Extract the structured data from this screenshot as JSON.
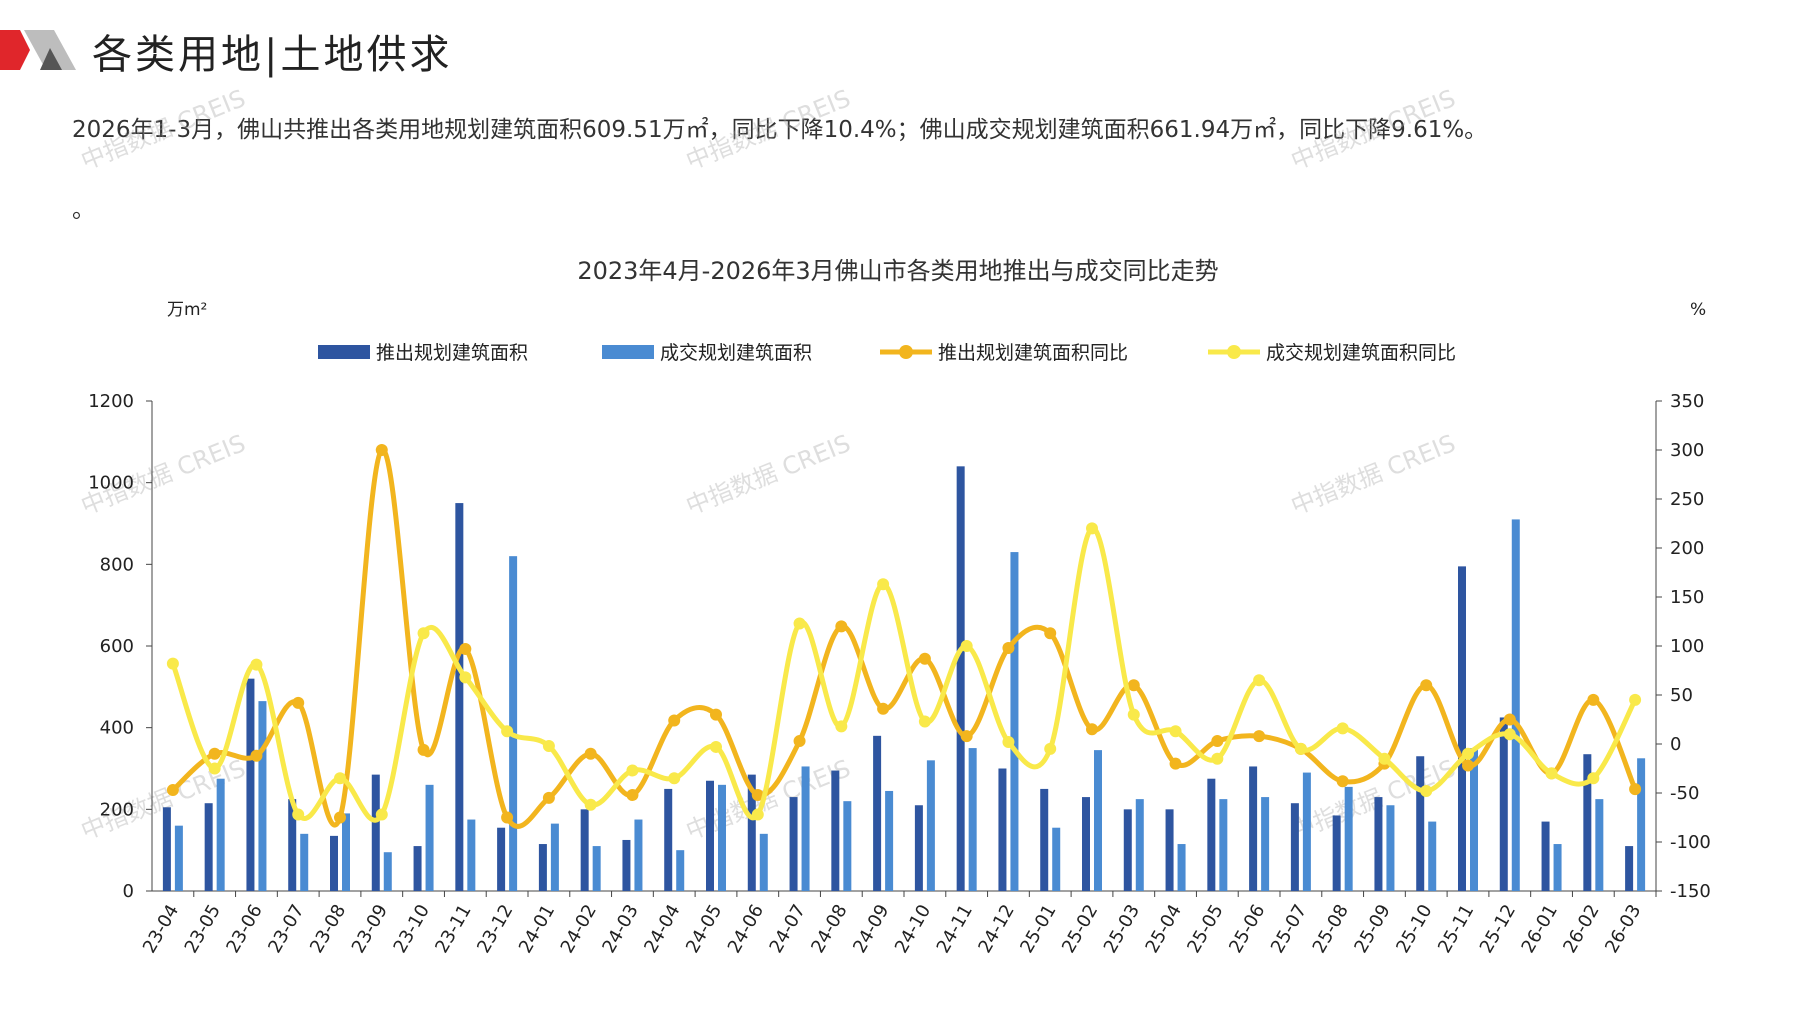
{
  "page": {
    "title": "各类用地|土地供求",
    "summary": "2026年1-3月，佛山共推出各类用地规划建筑面积609.51万㎡，同比下降10.4%；佛山成交规划建筑面积661.94万㎡，同比下降9.61%。",
    "summary_tail": "。",
    "watermark": "中指数据 CREIS"
  },
  "colors": {
    "supply_bar": "#2E55A0",
    "deal_bar": "#4A8BD2",
    "supply_line": "#F2B51E",
    "deal_line": "#F9E94A",
    "logo_red": "#E0262B",
    "logo_gray": "#9C9C9C"
  },
  "chart_data": {
    "type": "bar",
    "title": "2023年4月-2026年3月佛山市各类用地推出与成交同比走势",
    "y_left_unit": "万m²",
    "y_right_unit": "%",
    "y_left_lim": [
      0,
      1200
    ],
    "y_left_ticks": [
      "0",
      "200",
      "400",
      "600",
      "800",
      "1000",
      "1200"
    ],
    "y_right_lim": [
      -150,
      350
    ],
    "y_right_ticks": [
      "-150",
      "-100",
      "-50",
      "0",
      "50",
      "100",
      "150",
      "200",
      "250",
      "300",
      "350"
    ],
    "legend_position": "top",
    "categories": [
      "23-04",
      "23-05",
      "23-06",
      "23-07",
      "23-08",
      "23-09",
      "23-10",
      "23-11",
      "23-12",
      "24-01",
      "24-02",
      "24-03",
      "24-04",
      "24-05",
      "24-06",
      "24-07",
      "24-08",
      "24-09",
      "24-10",
      "24-11",
      "24-12",
      "25-01",
      "25-02",
      "25-03",
      "25-04",
      "25-05",
      "25-06",
      "25-07",
      "25-08",
      "25-09",
      "25-10",
      "25-11",
      "25-12",
      "26-01",
      "26-02",
      "26-03"
    ],
    "series": [
      {
        "name": "推出规划建筑面积",
        "type": "bar",
        "axis": "left",
        "values": [
          205,
          215,
          520,
          225,
          135,
          285,
          110,
          950,
          155,
          115,
          200,
          125,
          250,
          270,
          285,
          230,
          295,
          380,
          210,
          1040,
          300,
          250,
          230,
          200,
          200,
          275,
          305,
          215,
          185,
          230,
          330,
          795,
          425,
          170,
          335,
          110
        ]
      },
      {
        "name": "成交规划建筑面积",
        "type": "bar",
        "axis": "left",
        "values": [
          160,
          275,
          465,
          140,
          190,
          95,
          260,
          175,
          820,
          165,
          110,
          175,
          100,
          260,
          140,
          305,
          220,
          245,
          320,
          350,
          830,
          155,
          345,
          225,
          115,
          225,
          230,
          290,
          255,
          210,
          170,
          350,
          910,
          115,
          225,
          325
        ]
      },
      {
        "name": "推出规划建筑面积同比",
        "type": "line",
        "axis": "right",
        "values": [
          -47,
          -10,
          -12,
          42,
          -75,
          300,
          -6,
          97,
          -75,
          -55,
          -10,
          -52,
          24,
          30,
          -52,
          3,
          120,
          36,
          87,
          8,
          98,
          113,
          15,
          60,
          -20,
          3,
          8,
          -5,
          -38,
          -20,
          60,
          -22,
          25,
          -30,
          45,
          -46
        ]
      },
      {
        "name": "成交规划建筑面积同比",
        "type": "line",
        "axis": "right",
        "values": [
          82,
          -25,
          81,
          -72,
          -35,
          -72,
          113,
          68,
          13,
          -2,
          -62,
          -27,
          -35,
          -3,
          -72,
          123,
          18,
          163,
          23,
          100,
          2,
          -5,
          220,
          30,
          13,
          -15,
          65,
          -5,
          16,
          -15,
          -48,
          -10,
          10,
          -30,
          -35,
          45
        ]
      }
    ]
  }
}
